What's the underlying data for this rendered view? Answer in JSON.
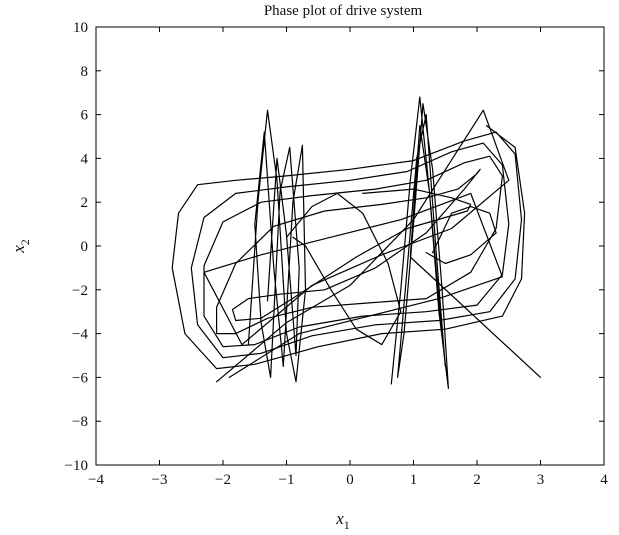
{
  "chart_data": {
    "type": "line",
    "title": "Phase plot of drive system",
    "xlabel": {
      "main": "x",
      "sub": "1"
    },
    "ylabel": {
      "main": "x",
      "sub": "2"
    },
    "xlim": [
      -4,
      4
    ],
    "ylim": [
      -10,
      10
    ],
    "xticks": [
      -4,
      -3,
      -2,
      -1,
      0,
      1,
      2,
      3,
      4
    ],
    "yticks": [
      -10,
      -8,
      -6,
      -4,
      -2,
      0,
      2,
      4,
      6,
      8,
      10
    ],
    "xtick_labels": [
      "−4",
      "−3",
      "−2",
      "−1",
      "0",
      "1",
      "2",
      "3",
      "4"
    ],
    "ytick_labels": [
      "−10",
      "−8",
      "−6",
      "−4",
      "−2",
      "0",
      "2",
      "4",
      "6",
      "8",
      "10"
    ],
    "grid": false,
    "line_color": "#000000",
    "series": [
      {
        "x": [
          2.15,
          2.6,
          2.75,
          2.7,
          2.4,
          1.5,
          0.5,
          -0.5,
          -1.5,
          -2.1,
          -2.6,
          -2.8,
          -2.7,
          -2.4,
          -1.8,
          -1.0,
          0.0,
          1.0,
          1.8,
          2.3,
          2.6,
          2.7,
          2.6,
          2.2,
          1.4,
          0.4,
          -0.6,
          -1.4,
          -2.0,
          -2.4,
          -2.5,
          -2.3,
          -1.8,
          -1.0,
          0.0,
          0.9,
          1.6,
          2.1,
          2.4,
          2.5,
          2.4,
          2.0,
          1.2,
          0.2,
          -0.8,
          -1.5,
          -2.0,
          -2.3,
          -2.3,
          -2.0,
          -1.4,
          -0.6,
          0.4,
          1.2,
          1.8,
          2.2,
          2.4,
          2.3,
          1.9,
          1.2,
          0.3,
          -0.6,
          -1.3,
          -1.8,
          -2.1,
          -2.1,
          -1.8,
          -1.2,
          -0.4,
          0.5,
          1.2,
          1.7,
          2.0,
          2.05,
          1.8,
          1.2,
          0.4,
          -0.4,
          -1.1,
          -1.6,
          -1.85,
          -1.8,
          -1.4,
          -0.8,
          0.1,
          0.9,
          1.5,
          1.85,
          1.9,
          1.6,
          1.0,
          0.2
        ],
        "y": [
          5.5,
          4.5,
          1.5,
          -1.5,
          -3.2,
          -3.8,
          -4.0,
          -4.6,
          -5.4,
          -5.6,
          -4.0,
          -1.0,
          1.5,
          2.8,
          3.0,
          3.2,
          3.5,
          3.9,
          4.8,
          5.2,
          4.2,
          1.2,
          -1.5,
          -3.0,
          -3.4,
          -3.6,
          -4.1,
          -4.9,
          -5.1,
          -3.6,
          -1.0,
          1.3,
          2.4,
          2.7,
          3.0,
          3.4,
          4.3,
          4.7,
          3.7,
          1.0,
          -1.3,
          -2.7,
          -3.0,
          -3.2,
          -3.7,
          -4.5,
          -4.6,
          -3.2,
          -0.9,
          1.1,
          2.0,
          2.3,
          2.6,
          3.0,
          3.8,
          4.1,
          3.2,
          0.8,
          -1.2,
          -2.4,
          -2.6,
          -2.8,
          -3.3,
          -4.0,
          -4.0,
          -2.8,
          -0.8,
          0.9,
          1.6,
          1.9,
          2.2,
          2.6,
          3.3,
          3.5,
          2.6,
          0.6,
          -1.0,
          -2.0,
          -2.2,
          -2.4,
          -2.9,
          -3.4,
          -3.3,
          -2.2,
          -0.5,
          0.8,
          1.3,
          1.6,
          1.9,
          2.2,
          2.6,
          2.4
        ]
      },
      {
        "x": [
          -2.1,
          -1.0,
          0.0,
          1.0,
          2.1,
          2.5,
          1.6,
          0.5,
          -0.6,
          -1.7,
          -2.3,
          -1.4,
          -0.3,
          0.8,
          1.9,
          2.4,
          1.4,
          0.3,
          -0.8,
          -1.9
        ],
        "y": [
          -6.2,
          -3.5,
          -1.8,
          1.2,
          6.2,
          3.0,
          0.8,
          -0.4,
          -1.8,
          -4.5,
          -1.2,
          -0.4,
          0.4,
          1.2,
          2.4,
          -1.4,
          -2.4,
          -3.2,
          -4.0,
          -6.0
        ]
      },
      {
        "x": [
          -1.6,
          -1.45,
          -1.3,
          -1.15,
          -1.0,
          -0.85,
          -0.7,
          -0.75,
          -0.9,
          -1.05,
          -1.2,
          -1.35,
          -1.5,
          -1.4,
          -1.25,
          -1.1,
          -0.95,
          -0.8,
          -0.85,
          -1.0,
          -1.15,
          -1.3
        ],
        "y": [
          -4.5,
          2.0,
          6.2,
          3.0,
          -4.0,
          -6.2,
          -2.0,
          4.6,
          2.0,
          -5.5,
          -1.0,
          5.2,
          1.0,
          -3.5,
          -6.0,
          2.5,
          4.5,
          -1.0,
          -5.0,
          0.5,
          4.0,
          -2.5
        ]
      },
      {
        "x": [
          0.65,
          0.8,
          0.95,
          1.1,
          1.25,
          1.4,
          1.55,
          1.45,
          1.3,
          1.15,
          1.0,
          0.85,
          0.75,
          0.9,
          1.05,
          1.2,
          1.35,
          1.5,
          1.4,
          1.25,
          1.1,
          0.95,
          3.0
        ],
        "y": [
          -6.3,
          -2.0,
          3.0,
          6.8,
          2.5,
          -3.0,
          -6.5,
          -2.0,
          3.5,
          6.5,
          1.0,
          -4.0,
          -6.0,
          -1.0,
          4.0,
          6.0,
          0.0,
          -5.5,
          -2.5,
          2.5,
          5.5,
          -0.5,
          -6.0
        ]
      },
      {
        "x": [
          -1.0,
          -0.6,
          -0.2,
          0.2,
          0.6,
          0.8,
          0.5,
          0.1,
          -0.3,
          -0.7,
          -0.9
        ],
        "y": [
          0.4,
          1.8,
          2.4,
          1.5,
          -0.8,
          -3.0,
          -4.5,
          -3.8,
          -2.0,
          0.0,
          0.4
        ]
      },
      {
        "x": [
          1.3,
          1.6,
          1.9,
          2.2,
          2.3,
          1.9,
          1.5,
          1.2
        ],
        "y": [
          -0.3,
          1.5,
          1.8,
          1.5,
          0.6,
          -0.4,
          -0.8,
          -0.3
        ]
      }
    ]
  }
}
